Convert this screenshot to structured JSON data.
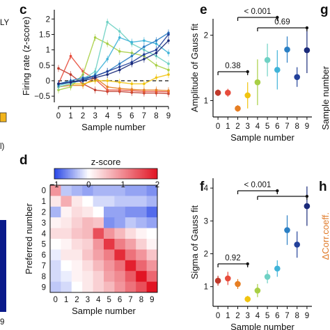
{
  "panel_letters": {
    "c": "c",
    "d": "d",
    "e": "e",
    "f": "f",
    "g": "g",
    "h": "h"
  },
  "fragments": {
    "top_left": "LY",
    "mid_left": "l)",
    "bottom_left_tick": "9",
    "right_g_ylabel": "Sample number",
    "right_h_ylabel": "ΔCorr.coeff."
  },
  "colors": {
    "blue_bar_fragment": "#0a1a8a",
    "yellow_square_fragment": "#f2b41b",
    "h_label": "#e07b2a",
    "dashed_zero": "#111111"
  },
  "chart_data": [
    {
      "id": "c",
      "type": "line",
      "title": "",
      "xlabel": "Sample number",
      "ylabel": "Firing rate (z-score)",
      "x": [
        0,
        1,
        2,
        3,
        4,
        5,
        6,
        7,
        8,
        9
      ],
      "xlim": [
        0,
        9
      ],
      "ylim": [
        -0.7,
        2.3
      ],
      "yticks": [
        -0.5,
        0,
        0.5,
        1,
        1.5,
        2
      ],
      "ytick_labels": [
        "−0.5",
        "0",
        "0.5",
        "1",
        "1.5",
        "2"
      ],
      "dashed_zero_line": true,
      "series": [
        {
          "color": "#c0392b",
          "values": [
            0.4,
            0.2,
            -0.1,
            -0.3,
            -0.35,
            -0.35,
            -0.38,
            -0.4,
            -0.4,
            -0.42
          ]
        },
        {
          "color": "#e74c3c",
          "values": [
            -0.1,
            0.8,
            0.3,
            0.05,
            -0.3,
            -0.3,
            -0.32,
            -0.35,
            -0.35,
            -0.36
          ]
        },
        {
          "color": "#e67e22",
          "values": [
            -0.2,
            -0.15,
            -0.15,
            0.1,
            -0.2,
            -0.25,
            -0.28,
            -0.3,
            -0.3,
            -0.32
          ]
        },
        {
          "color": "#f1c40f",
          "values": [
            -0.2,
            -0.1,
            -0.1,
            0.0,
            0.0,
            -0.05,
            -0.1,
            -0.1,
            0.1,
            0.2
          ]
        },
        {
          "color": "#a8cf45",
          "values": [
            -0.3,
            -0.2,
            0.2,
            1.4,
            1.2,
            0.95,
            0.9,
            0.8,
            0.5,
            0.35
          ]
        },
        {
          "color": "#6fd1c4",
          "values": [
            -0.2,
            -0.1,
            0.05,
            0.3,
            1.9,
            1.6,
            1.2,
            1.0,
            0.8,
            0.55
          ]
        },
        {
          "color": "#3fb3d8",
          "values": [
            -0.15,
            -0.05,
            0.0,
            0.2,
            0.7,
            1.4,
            1.25,
            1.3,
            1.2,
            0.9
          ]
        },
        {
          "color": "#2a7fc4",
          "values": [
            -0.1,
            0.0,
            0.1,
            0.15,
            0.3,
            0.55,
            0.8,
            1.1,
            1.3,
            1.55
          ]
        },
        {
          "color": "#22409a",
          "values": [
            -0.1,
            -0.05,
            0.05,
            0.15,
            0.3,
            0.45,
            0.6,
            0.85,
            1.0,
            1.5
          ]
        },
        {
          "color": "#1a2a7a",
          "values": [
            -0.1,
            -0.05,
            0.0,
            0.1,
            0.2,
            0.35,
            0.55,
            0.7,
            0.9,
            1.3
          ]
        }
      ]
    },
    {
      "id": "d",
      "type": "heatmap",
      "title": "",
      "colorbar_label": "z-score",
      "colorbar_ticks": [
        "−1",
        "0",
        "1",
        "2"
      ],
      "colorbar_range": [
        -1,
        2
      ],
      "xlabel": "Sample number",
      "ylabel": "Preferred number",
      "x_ticks": [
        "0",
        "1",
        "2",
        "3",
        "4",
        "5",
        "6",
        "7",
        "8",
        "9"
      ],
      "y_ticks": [
        "0",
        "1",
        "2",
        "3",
        "4",
        "5",
        "6",
        "7",
        "8",
        "9"
      ],
      "values": [
        [
          0.9,
          -0.3,
          -0.4,
          -0.5,
          -0.4,
          -0.4,
          -0.4,
          -0.5,
          -0.5,
          -0.6
        ],
        [
          0.2,
          0.7,
          0.2,
          0.0,
          -0.2,
          -0.2,
          -0.3,
          -0.3,
          -0.3,
          -0.4
        ],
        [
          -0.4,
          0.1,
          0.3,
          0.2,
          0.0,
          -0.5,
          -0.5,
          -0.6,
          -0.6,
          -0.8
        ],
        [
          0.1,
          0.2,
          0.4,
          0.6,
          0.5,
          -0.6,
          -0.5,
          -0.3,
          -0.4,
          -0.5
        ],
        [
          0.3,
          0.3,
          0.5,
          0.6,
          1.5,
          0.9,
          0.6,
          0.3,
          0.1,
          0.0
        ],
        [
          0.0,
          0.1,
          0.3,
          0.4,
          0.9,
          1.7,
          1.1,
          0.8,
          0.4,
          0.1
        ],
        [
          -0.1,
          0.2,
          0.2,
          0.5,
          0.8,
          1.1,
          1.8,
          1.2,
          0.9,
          0.5
        ],
        [
          -0.2,
          0.0,
          0.1,
          0.3,
          0.6,
          0.9,
          1.2,
          1.9,
          1.3,
          0.9
        ],
        [
          -0.2,
          -0.1,
          0.1,
          0.2,
          0.4,
          0.8,
          1.0,
          1.4,
          2.0,
          1.3
        ],
        [
          -0.3,
          -0.2,
          0.0,
          0.2,
          0.4,
          0.6,
          0.9,
          1.2,
          1.5,
          2.0
        ]
      ]
    },
    {
      "id": "e",
      "type": "scatter",
      "title": "",
      "xlabel": "Sample number",
      "ylabel": "Amplitude of Gauss fit",
      "x": [
        0,
        1,
        2,
        3,
        4,
        5,
        6,
        7,
        8,
        9
      ],
      "ylim": [
        0.75,
        2.25
      ],
      "yticks": [
        1,
        2
      ],
      "ytick_labels": [
        "1",
        "2"
      ],
      "values": [
        1.12,
        1.12,
        0.88,
        1.08,
        1.28,
        1.62,
        1.47,
        1.78,
        1.36,
        1.77
      ],
      "errors": [
        0.05,
        0.06,
        0.05,
        0.2,
        0.35,
        0.25,
        0.3,
        0.2,
        0.15,
        0.35
      ],
      "colors": [
        "#c0392b",
        "#e74c3c",
        "#e67e22",
        "#f1c40f",
        "#a8cf45",
        "#6fd1c4",
        "#3fb3d8",
        "#2a7fc4",
        "#22409a",
        "#1a2a7a"
      ],
      "brackets": [
        {
          "from": 4,
          "to": 9,
          "label": "0.69"
        },
        {
          "from": 0,
          "to": 3,
          "label": "0.38"
        }
      ],
      "top_bracket": {
        "from": 2,
        "to": 6,
        "label": "< 0.001"
      }
    },
    {
      "id": "f",
      "type": "scatter",
      "title": "",
      "xlabel": "Sample number",
      "ylabel": "Sigma of Gauss fit",
      "x": [
        0,
        1,
        2,
        3,
        4,
        5,
        6,
        7,
        8,
        9
      ],
      "ylim": [
        0.4,
        4.3
      ],
      "yticks": [
        1,
        2,
        3,
        4
      ],
      "ytick_labels": [
        "1",
        "2",
        "3",
        "4"
      ],
      "values": [
        1.18,
        1.25,
        1.08,
        0.62,
        0.88,
        1.3,
        1.55,
        2.72,
        2.28,
        3.45
      ],
      "errors": [
        0.15,
        0.2,
        0.15,
        0.1,
        0.2,
        0.2,
        0.25,
        0.45,
        0.4,
        0.6
      ],
      "colors": [
        "#c0392b",
        "#e74c3c",
        "#e67e22",
        "#f1c40f",
        "#a8cf45",
        "#6fd1c4",
        "#3fb3d8",
        "#2a7fc4",
        "#22409a",
        "#1a2a7a"
      ],
      "brackets": [
        {
          "from": 0,
          "to": 3,
          "label": "0.92"
        }
      ],
      "top_bracket": {
        "from": 2,
        "to": 6,
        "label": "< 0.001"
      },
      "extra_bracket": {
        "from": 4,
        "to": 9
      }
    }
  ]
}
